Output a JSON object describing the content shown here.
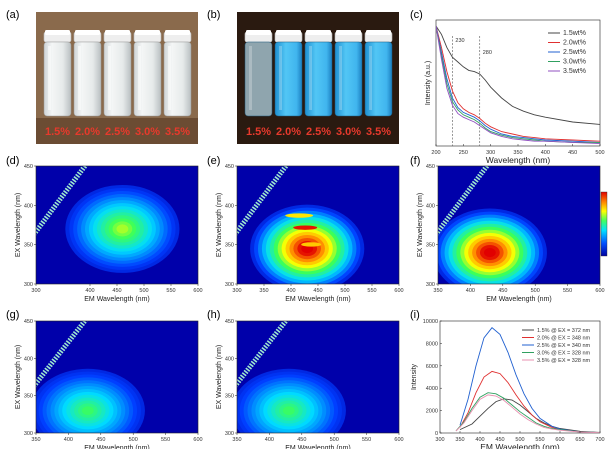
{
  "panels": {
    "a": {
      "label": "(a)"
    },
    "b": {
      "label": "(b)"
    },
    "c": {
      "label": "(c)"
    },
    "d": {
      "label": "(d)"
    },
    "e": {
      "label": "(e)"
    },
    "f": {
      "label": "(f)"
    },
    "g": {
      "label": "(g)"
    },
    "h": {
      "label": "(h)"
    },
    "i": {
      "label": "(i)"
    }
  },
  "photos": {
    "concentrations": [
      "1.5%",
      "2.0%",
      "2.5%",
      "3.0%",
      "3.5%"
    ],
    "label_color": "#e8392c",
    "daylight_background": "#8a6a4c",
    "uv_background": "#2a1a10",
    "uv_glow": "#3fb8f0"
  },
  "chart_data": [
    {
      "panel": "c",
      "type": "line",
      "xlabel": "Wavelength (nm)",
      "ylabel": "Intensity (a.u.)",
      "xlim": [
        200,
        500
      ],
      "x_ticks": [
        200,
        250,
        300,
        350,
        400,
        450,
        500
      ],
      "annotations": [
        {
          "text": "230",
          "x": 230
        },
        {
          "text": "280",
          "x": 280
        }
      ],
      "legend_position": "top-right",
      "series": [
        {
          "name": "1.5wt%",
          "color": "#444444",
          "x": [
            200,
            210,
            220,
            230,
            240,
            250,
            260,
            270,
            280,
            290,
            300,
            320,
            340,
            360,
            380,
            400,
            450,
            500
          ],
          "y": [
            1.0,
            0.93,
            0.82,
            0.74,
            0.7,
            0.66,
            0.63,
            0.62,
            0.6,
            0.55,
            0.49,
            0.4,
            0.33,
            0.29,
            0.26,
            0.24,
            0.2,
            0.18
          ]
        },
        {
          "name": "2.0wt%",
          "color": "#e03030",
          "x": [
            200,
            210,
            220,
            230,
            240,
            250,
            260,
            270,
            280,
            290,
            300,
            320,
            340,
            360,
            380,
            400,
            450,
            500
          ],
          "y": [
            1.0,
            0.82,
            0.62,
            0.46,
            0.36,
            0.31,
            0.28,
            0.26,
            0.23,
            0.19,
            0.16,
            0.12,
            0.1,
            0.08,
            0.07,
            0.06,
            0.05,
            0.04
          ]
        },
        {
          "name": "2.5wt%",
          "color": "#2060d0",
          "x": [
            200,
            210,
            220,
            230,
            240,
            250,
            260,
            270,
            280,
            290,
            300,
            320,
            340,
            360,
            380,
            400,
            450,
            500
          ],
          "y": [
            1.0,
            0.78,
            0.56,
            0.4,
            0.32,
            0.28,
            0.26,
            0.24,
            0.21,
            0.17,
            0.14,
            0.1,
            0.08,
            0.07,
            0.06,
            0.05,
            0.04,
            0.03
          ]
        },
        {
          "name": "3.0wt%",
          "color": "#30a060",
          "x": [
            200,
            210,
            220,
            230,
            240,
            250,
            260,
            270,
            280,
            290,
            300,
            320,
            340,
            360,
            380,
            400,
            450,
            500
          ],
          "y": [
            1.0,
            0.75,
            0.52,
            0.37,
            0.3,
            0.26,
            0.24,
            0.22,
            0.19,
            0.15,
            0.12,
            0.09,
            0.07,
            0.06,
            0.05,
            0.04,
            0.03,
            0.03
          ]
        },
        {
          "name": "3.5wt%",
          "color": "#9050c0",
          "x": [
            200,
            210,
            220,
            230,
            240,
            250,
            260,
            270,
            280,
            290,
            300,
            320,
            340,
            360,
            380,
            400,
            450,
            500
          ],
          "y": [
            1.0,
            0.72,
            0.48,
            0.34,
            0.27,
            0.24,
            0.22,
            0.2,
            0.17,
            0.14,
            0.11,
            0.08,
            0.06,
            0.05,
            0.04,
            0.04,
            0.03,
            0.02
          ]
        }
      ]
    },
    {
      "panel": "d",
      "type": "heatmap",
      "xlabel": "EM Wavelength (nm)",
      "ylabel": "EX Wavelength (nm)",
      "xlim": [
        300,
        600
      ],
      "ylim": [
        300,
        450
      ],
      "x_ticks": [
        300,
        400,
        450,
        500,
        550,
        600
      ],
      "y_ticks": [
        300,
        350,
        400,
        450
      ],
      "peak": {
        "em": 460,
        "ex": 370
      },
      "max_level": 0.55
    },
    {
      "panel": "e",
      "type": "heatmap",
      "xlabel": "EM Wavelength (nm)",
      "ylabel": "EX Wavelength (nm)",
      "xlim": [
        300,
        600
      ],
      "ylim": [
        300,
        450
      ],
      "x_ticks": [
        300,
        350,
        400,
        450,
        500,
        550,
        600
      ],
      "y_ticks": [
        300,
        350,
        400,
        450
      ],
      "peak": {
        "em": 430,
        "ex": 345
      },
      "max_level": 1.0
    },
    {
      "panel": "f",
      "type": "heatmap",
      "xlabel": "EM Wavelength (nm)",
      "ylabel": "EX Wavelength (nm)",
      "xlim": [
        350,
        600
      ],
      "ylim": [
        300,
        450
      ],
      "x_ticks": [
        350,
        400,
        450,
        500,
        550,
        600
      ],
      "y_ticks": [
        300,
        350,
        400,
        450
      ],
      "peak": {
        "em": 430,
        "ex": 340
      },
      "max_level": 1.0
    },
    {
      "panel": "g",
      "type": "heatmap",
      "xlabel": "EM Wavelength (nm)",
      "ylabel": "EX Wavelength (nm)",
      "xlim": [
        350,
        600
      ],
      "ylim": [
        300,
        450
      ],
      "x_ticks": [
        350,
        400,
        450,
        500,
        550,
        600
      ],
      "y_ticks": [
        300,
        350,
        400,
        450
      ],
      "peak": {
        "em": 430,
        "ex": 330
      },
      "max_level": 0.45
    },
    {
      "panel": "h",
      "type": "heatmap",
      "xlabel": "EM Wavelength (nm)",
      "ylabel": "EX Wavelength (nm)",
      "xlim": [
        350,
        600
      ],
      "ylim": [
        300,
        450
      ],
      "x_ticks": [
        350,
        400,
        450,
        500,
        550,
        600
      ],
      "y_ticks": [
        300,
        350,
        400,
        450
      ],
      "peak": {
        "em": 430,
        "ex": 330
      },
      "max_level": 0.45
    },
    {
      "panel": "i",
      "type": "line",
      "xlabel": "EM Wavelength (nm)",
      "ylabel": "Intensity",
      "xlim": [
        300,
        700
      ],
      "ylim": [
        0,
        10000
      ],
      "x_ticks": [
        300,
        350,
        400,
        450,
        500,
        550,
        600,
        650,
        700
      ],
      "y_ticks": [
        0,
        2000,
        4000,
        6000,
        8000,
        10000
      ],
      "legend_position": "top-right",
      "series": [
        {
          "name": "1.5% @ EX = 372 nm",
          "color": "#444444",
          "x": [
            350,
            380,
            400,
            420,
            440,
            460,
            480,
            500,
            520,
            540,
            560,
            580,
            600,
            650,
            700
          ],
          "y": [
            300,
            800,
            1500,
            2200,
            2800,
            3050,
            2950,
            2500,
            1900,
            1300,
            900,
            600,
            400,
            150,
            50
          ]
        },
        {
          "name": "2.0% @ EX = 348 nm",
          "color": "#e03030",
          "x": [
            350,
            370,
            390,
            410,
            430,
            450,
            470,
            490,
            510,
            530,
            550,
            580,
            600,
            650,
            700
          ],
          "y": [
            500,
            1800,
            3600,
            5000,
            5500,
            5300,
            4500,
            3400,
            2400,
            1600,
            1000,
            500,
            300,
            100,
            40
          ]
        },
        {
          "name": "2.5% @ EX = 340 nm",
          "color": "#2060d0",
          "x": [
            350,
            370,
            390,
            410,
            430,
            450,
            470,
            490,
            510,
            530,
            550,
            580,
            600,
            650,
            700
          ],
          "y": [
            700,
            3000,
            6000,
            8500,
            9400,
            8800,
            7200,
            5200,
            3500,
            2200,
            1300,
            600,
            350,
            100,
            40
          ]
        },
        {
          "name": "3.0% @ EX = 328 nm",
          "color": "#30a060",
          "x": [
            340,
            360,
            380,
            400,
            420,
            440,
            460,
            480,
            500,
            520,
            540,
            560,
            580,
            600,
            650,
            700
          ],
          "y": [
            200,
            1000,
            2200,
            3200,
            3600,
            3500,
            3100,
            2500,
            1900,
            1400,
            900,
            600,
            400,
            300,
            100,
            40
          ]
        },
        {
          "name": "3.5% @ EX = 328 nm",
          "color": "#e890b0",
          "x": [
            340,
            360,
            380,
            400,
            420,
            440,
            460,
            480,
            500,
            520,
            540,
            560,
            580,
            600,
            650,
            700
          ],
          "y": [
            180,
            900,
            2000,
            3000,
            3400,
            3300,
            2900,
            2300,
            1700,
            1200,
            800,
            500,
            350,
            250,
            90,
            30
          ]
        }
      ]
    }
  ]
}
